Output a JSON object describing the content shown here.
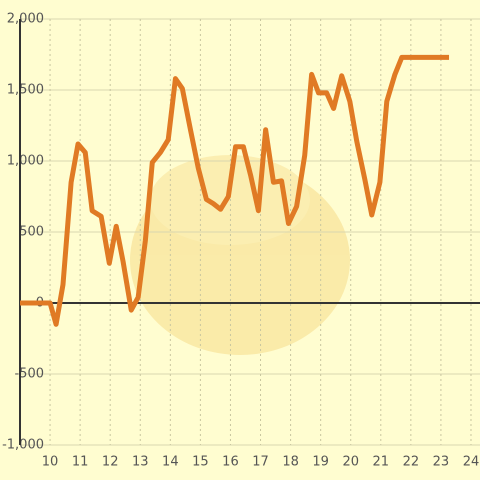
{
  "chart_data": {
    "type": "line",
    "x": [
      9,
      10,
      10.2,
      10.43,
      10.7,
      10.93,
      11.17,
      11.4,
      11.7,
      11.97,
      12.2,
      12.43,
      12.7,
      12.93,
      13.17,
      13.4,
      13.67,
      13.93,
      14.17,
      14.4,
      14.67,
      14.93,
      15.2,
      15.43,
      15.67,
      15.93,
      16.17,
      16.43,
      16.67,
      16.93,
      17.17,
      17.43,
      17.7,
      17.93,
      18.2,
      18.47,
      18.7,
      18.93,
      19.2,
      19.43,
      19.7,
      19.97,
      20.2,
      20.47,
      20.7,
      20.97,
      21.2,
      21.47,
      21.7,
      23.27
    ],
    "series": [
      {
        "color": "#e07a24",
        "values": [
          0,
          0,
          -150,
          130,
          850,
          1120,
          1060,
          650,
          610,
          280,
          540,
          290,
          -50,
          40,
          440,
          990,
          1060,
          1150,
          1580,
          1510,
          1220,
          950,
          730,
          700,
          660,
          750,
          1100,
          1100,
          900,
          650,
          1220,
          850,
          860,
          560,
          680,
          1040,
          1610,
          1480,
          1480,
          1370,
          1600,
          1420,
          1140,
          870,
          620,
          850,
          1420,
          1610,
          1730,
          1730
        ]
      }
    ],
    "xlim": [
      9,
      24.3
    ],
    "xticks": [
      10,
      11,
      12,
      13,
      14,
      15,
      16,
      17,
      18,
      19,
      20,
      21,
      22,
      23,
      24
    ],
    "ylim": [
      -1000,
      2000
    ],
    "yticks": [
      {
        "value": -1000,
        "label": "-1,000"
      },
      -500,
      0,
      500,
      {
        "value": 1000,
        "label": "1,000"
      },
      {
        "value": 1500,
        "label": "1,500"
      },
      {
        "value": 2000,
        "label": "2,000"
      }
    ],
    "grid": true
  }
}
